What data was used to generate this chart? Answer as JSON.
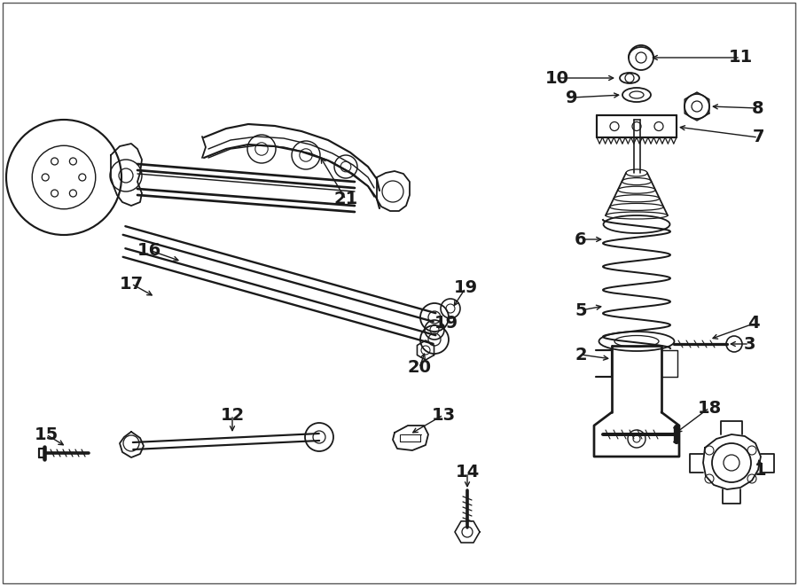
{
  "bg_color": "#ffffff",
  "line_color": "#1a1a1a",
  "fig_width": 9.0,
  "fig_height": 6.61,
  "dpi": 100,
  "border_color": "#555555"
}
